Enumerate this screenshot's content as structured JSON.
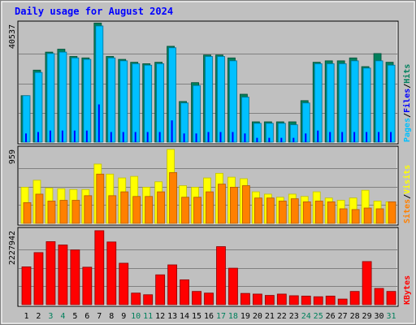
{
  "title": "Daily usage for August 2024",
  "colors": {
    "background": "#c0c0c0",
    "hits": "#00805c",
    "files": "#0000ff",
    "pages": "#00c0ff",
    "visits": "#ffff00",
    "sites": "#ff8000",
    "kbytes": "#ff0000",
    "title": "#0000ff",
    "weekend_label": "#00805c"
  },
  "chart_data": [
    {
      "type": "bar",
      "panel": "hits-files-pages",
      "ymax_label": "40537",
      "ylim": [
        0,
        40537
      ],
      "legend": [
        "Hits",
        "Files",
        "Pages"
      ],
      "categories": [
        "1",
        "2",
        "3",
        "4",
        "5",
        "6",
        "7",
        "8",
        "9",
        "10",
        "11",
        "12",
        "13",
        "14",
        "15",
        "16",
        "17",
        "18",
        "19",
        "20",
        "21",
        "22",
        "23",
        "24",
        "25",
        "26",
        "27",
        "28",
        "29",
        "30",
        "31"
      ],
      "series": [
        {
          "name": "Hits",
          "values": [
            16000,
            24800,
            31000,
            32000,
            29500,
            29000,
            41000,
            29500,
            28500,
            27500,
            27000,
            27500,
            33000,
            14000,
            20500,
            30000,
            30000,
            29000,
            16500,
            7000,
            7000,
            7000,
            7000,
            14300,
            27500,
            28000,
            28000,
            29000,
            26000,
            30500,
            27500
          ]
        },
        {
          "name": "Files",
          "values": [
            3000,
            3500,
            4000,
            4000,
            4000,
            4000,
            13000,
            3500,
            3500,
            3500,
            3500,
            3500,
            7500,
            3000,
            3000,
            3500,
            3500,
            3500,
            3000,
            1500,
            1500,
            1500,
            1500,
            3000,
            4000,
            3500,
            3500,
            3500,
            3500,
            3500,
            3500
          ]
        },
        {
          "name": "Pages",
          "values": [
            16000,
            24000,
            30500,
            31000,
            29000,
            28500,
            40000,
            29000,
            28000,
            27000,
            26500,
            27000,
            32500,
            13500,
            19500,
            29500,
            29500,
            28000,
            15500,
            6500,
            6500,
            6500,
            6000,
            13500,
            27000,
            27000,
            27000,
            28000,
            25500,
            28000,
            26500
          ]
        }
      ]
    },
    {
      "type": "bar",
      "panel": "visits-sites",
      "ymax_label": "959",
      "ylim": [
        0,
        959
      ],
      "legend": [
        "Visits",
        "Sites"
      ],
      "categories": [
        "1",
        "2",
        "3",
        "4",
        "5",
        "6",
        "7",
        "8",
        "9",
        "10",
        "11",
        "12",
        "13",
        "14",
        "15",
        "16",
        "17",
        "18",
        "19",
        "20",
        "21",
        "22",
        "23",
        "24",
        "25",
        "26",
        "27",
        "28",
        "29",
        "30",
        "31"
      ],
      "series": [
        {
          "name": "Visits",
          "values": [
            470,
            560,
            460,
            450,
            440,
            440,
            770,
            640,
            590,
            610,
            470,
            540,
            960,
            490,
            470,
            590,
            650,
            600,
            580,
            410,
            380,
            340,
            380,
            350,
            410,
            330,
            300,
            330,
            430,
            290,
            280
          ]
        },
        {
          "name": "Sites",
          "values": [
            270,
            380,
            290,
            300,
            300,
            360,
            640,
            360,
            410,
            350,
            350,
            410,
            660,
            340,
            340,
            410,
            510,
            470,
            490,
            330,
            330,
            290,
            320,
            280,
            290,
            280,
            190,
            180,
            200,
            190,
            280
          ]
        }
      ]
    },
    {
      "type": "bar",
      "panel": "kbytes",
      "ymax_label": "2227942",
      "ylim": [
        0,
        2227942
      ],
      "legend": [
        "KBytes"
      ],
      "categories": [
        "1",
        "2",
        "3",
        "4",
        "5",
        "6",
        "7",
        "8",
        "9",
        "10",
        "11",
        "12",
        "13",
        "14",
        "15",
        "16",
        "17",
        "18",
        "19",
        "20",
        "21",
        "22",
        "23",
        "24",
        "25",
        "26",
        "27",
        "28",
        "29",
        "30",
        "31"
      ],
      "series": [
        {
          "name": "KBytes",
          "values": [
            1140000,
            1570000,
            1900000,
            1800000,
            1650000,
            1130000,
            2230000,
            1890000,
            1250000,
            350000,
            300000,
            900000,
            1200000,
            750000,
            400000,
            350000,
            1750000,
            1100000,
            340000,
            320000,
            280000,
            320000,
            270000,
            260000,
            240000,
            260000,
            170000,
            400000,
            1300000,
            490000,
            400000
          ]
        }
      ]
    }
  ],
  "weekend_days": [
    "3",
    "4",
    "10",
    "11",
    "17",
    "18",
    "24",
    "25",
    "31"
  ],
  "legend_labels": {
    "top": [
      "Pages",
      "/",
      "Files",
      "/",
      "Hits"
    ],
    "mid": [
      "Sites",
      "/",
      "Visits"
    ],
    "bot": [
      "KBytes"
    ]
  }
}
